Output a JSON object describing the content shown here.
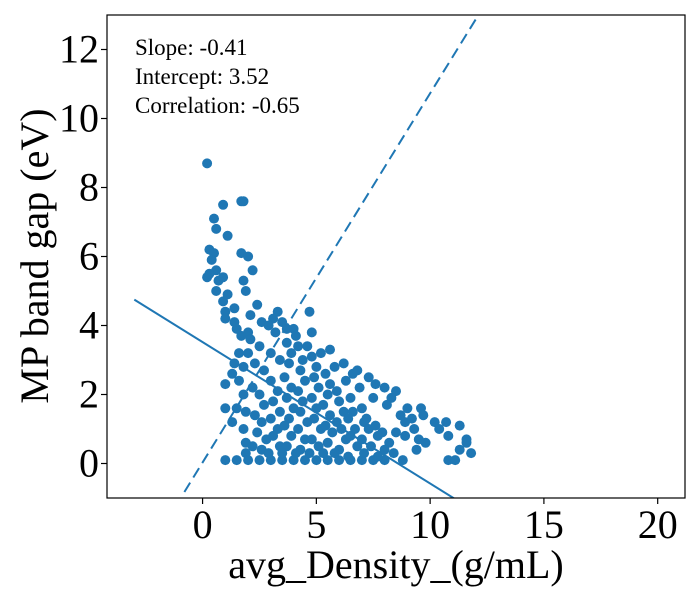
{
  "chart_data": {
    "type": "scatter",
    "title": "",
    "xlabel": "avg_Density_(g/mL)",
    "ylabel": "MP band gap (eV)",
    "xlim": [
      -4.2,
      21.2
    ],
    "ylim": [
      -1.0,
      13.0
    ],
    "xticks": [
      0,
      5,
      10,
      15,
      20
    ],
    "yticks": [
      0,
      2,
      4,
      6,
      8,
      10,
      12
    ],
    "grid": false,
    "color": "#1f77b4",
    "annotations": [
      "Slope: -0.41",
      "Intercept: 3.52",
      "Correlation: -0.65"
    ],
    "fit_line": {
      "style": "solid",
      "slope": -0.41,
      "intercept": 3.52,
      "x_range": [
        -3.0,
        12.0
      ]
    },
    "ideal_line": {
      "style": "dashed",
      "slope": 1.07,
      "intercept": 0.03,
      "x_range": [
        -0.8,
        12.2
      ]
    },
    "series": [
      {
        "points": [
          [
            0.2,
            8.7
          ],
          [
            1.7,
            7.6
          ],
          [
            1.8,
            7.6
          ],
          [
            0.5,
            7.1
          ],
          [
            0.9,
            7.5
          ],
          [
            1.1,
            6.6
          ],
          [
            0.6,
            6.8
          ],
          [
            0.3,
            6.2
          ],
          [
            0.5,
            6.1
          ],
          [
            1.7,
            6.1
          ],
          [
            2.0,
            6.0
          ],
          [
            0.4,
            5.9
          ],
          [
            0.6,
            5.6
          ],
          [
            0.2,
            5.4
          ],
          [
            0.3,
            5.5
          ],
          [
            0.7,
            5.3
          ],
          [
            0.9,
            5.4
          ],
          [
            1.8,
            5.3
          ],
          [
            2.2,
            5.6
          ],
          [
            0.6,
            5.0
          ],
          [
            0.9,
            4.7
          ],
          [
            1.1,
            4.9
          ],
          [
            1.9,
            5.0
          ],
          [
            2.4,
            4.6
          ],
          [
            1.0,
            4.4
          ],
          [
            1.4,
            4.5
          ],
          [
            2.1,
            4.3
          ],
          [
            3.1,
            4.2
          ],
          [
            3.3,
            4.4
          ],
          [
            4.7,
            4.4
          ],
          [
            1.0,
            4.2
          ],
          [
            1.5,
            3.9
          ],
          [
            2.0,
            3.8
          ],
          [
            2.6,
            4.1
          ],
          [
            3.5,
            4.1
          ],
          [
            4.0,
            3.9
          ],
          [
            4.8,
            3.8
          ],
          [
            5.6,
            3.3
          ],
          [
            6.2,
            2.9
          ],
          [
            6.6,
            2.6
          ],
          [
            6.8,
            2.7
          ],
          [
            7.3,
            2.5
          ],
          [
            7.6,
            2.3
          ],
          [
            8.0,
            2.2
          ],
          [
            8.5,
            2.1
          ],
          [
            8.3,
            1.9
          ],
          [
            9.0,
            1.6
          ],
          [
            9.6,
            1.6
          ],
          [
            9.7,
            1.4
          ],
          [
            10.2,
            1.2
          ],
          [
            10.4,
            1.0
          ],
          [
            10.7,
            1.2
          ],
          [
            10.8,
            0.8
          ],
          [
            11.3,
            1.1
          ],
          [
            11.6,
            0.7
          ],
          [
            11.8,
            0.3
          ],
          [
            11.3,
            0.4
          ],
          [
            11.6,
            0.6
          ],
          [
            10.8,
            0.1
          ],
          [
            11.1,
            0.1
          ],
          [
            9.5,
            0.7
          ],
          [
            8.9,
            0.8
          ],
          [
            8.5,
            0.9
          ],
          [
            8.2,
            0.6
          ],
          [
            7.9,
            0.9
          ],
          [
            9.4,
            0.4
          ],
          [
            9.8,
            0.6
          ],
          [
            7.2,
            1.3
          ],
          [
            8.9,
            1.2
          ],
          [
            9.3,
            1.0
          ],
          [
            1.0,
            2.3
          ],
          [
            1.3,
            2.6
          ],
          [
            1.0,
            1.6
          ],
          [
            1.5,
            1.6
          ],
          [
            1.3,
            1.2
          ],
          [
            1.9,
            1.5
          ],
          [
            1.8,
            1.0
          ],
          [
            1.9,
            0.6
          ],
          [
            1.9,
            0.3
          ],
          [
            1.0,
            0.1
          ],
          [
            1.5,
            0.1
          ],
          [
            2.0,
            0.1
          ],
          [
            2.5,
            0.1
          ],
          [
            3.0,
            0.1
          ],
          [
            3.5,
            0.1
          ],
          [
            4.0,
            0.1
          ],
          [
            4.5,
            0.1
          ],
          [
            5.0,
            0.1
          ],
          [
            5.5,
            0.1
          ],
          [
            6.0,
            0.1
          ],
          [
            6.5,
            0.1
          ],
          [
            7.0,
            0.1
          ],
          [
            7.5,
            0.1
          ],
          [
            8.0,
            0.1
          ],
          [
            8.8,
            0.1
          ],
          [
            2.1,
            3.6
          ],
          [
            2.5,
            3.4
          ],
          [
            2.3,
            2.9
          ],
          [
            2.7,
            2.7
          ],
          [
            2.2,
            2.2
          ],
          [
            2.5,
            2.0
          ],
          [
            2.7,
            1.7
          ],
          [
            2.3,
            1.4
          ],
          [
            2.6,
            1.2
          ],
          [
            2.4,
            0.9
          ],
          [
            2.8,
            0.7
          ],
          [
            2.6,
            0.4
          ],
          [
            3.2,
            3.8
          ],
          [
            3.0,
            3.2
          ],
          [
            3.4,
            3.0
          ],
          [
            3.0,
            2.4
          ],
          [
            3.3,
            2.1
          ],
          [
            3.1,
            1.8
          ],
          [
            3.4,
            1.5
          ],
          [
            3.0,
            1.3
          ],
          [
            3.3,
            1.0
          ],
          [
            3.1,
            0.8
          ],
          [
            3.4,
            0.5
          ],
          [
            3.7,
            3.5
          ],
          [
            3.9,
            3.2
          ],
          [
            3.8,
            2.9
          ],
          [
            3.6,
            2.5
          ],
          [
            3.9,
            2.2
          ],
          [
            3.7,
            1.9
          ],
          [
            4.0,
            1.6
          ],
          [
            3.8,
            1.3
          ],
          [
            3.6,
            1.1
          ],
          [
            3.9,
            0.8
          ],
          [
            3.7,
            0.5
          ],
          [
            4.2,
            3.4
          ],
          [
            4.4,
            3.0
          ],
          [
            4.3,
            2.7
          ],
          [
            4.5,
            2.4
          ],
          [
            4.2,
            2.1
          ],
          [
            4.4,
            1.8
          ],
          [
            4.3,
            1.5
          ],
          [
            4.6,
            1.2
          ],
          [
            4.2,
            1.0
          ],
          [
            4.5,
            0.7
          ],
          [
            4.3,
            0.4
          ],
          [
            4.8,
            3.1
          ],
          [
            5.0,
            2.8
          ],
          [
            4.9,
            2.5
          ],
          [
            5.1,
            2.2
          ],
          [
            4.8,
            1.9
          ],
          [
            5.0,
            1.6
          ],
          [
            4.9,
            1.3
          ],
          [
            5.2,
            1.0
          ],
          [
            4.8,
            0.7
          ],
          [
            5.1,
            0.5
          ],
          [
            5.4,
            2.6
          ],
          [
            5.6,
            2.3
          ],
          [
            5.5,
            2.0
          ],
          [
            5.3,
            1.7
          ],
          [
            5.6,
            1.4
          ],
          [
            5.4,
            1.1
          ],
          [
            5.7,
            0.9
          ],
          [
            5.5,
            0.6
          ],
          [
            5.3,
            0.3
          ],
          [
            5.9,
            2.1
          ],
          [
            6.0,
            1.8
          ],
          [
            6.2,
            1.5
          ],
          [
            5.9,
            1.2
          ],
          [
            6.1,
            1.0
          ],
          [
            6.3,
            0.7
          ],
          [
            6.0,
            0.4
          ],
          [
            6.5,
            1.9
          ],
          [
            6.6,
            1.5
          ],
          [
            6.4,
            1.3
          ],
          [
            6.7,
            1.0
          ],
          [
            6.5,
            0.8
          ],
          [
            6.8,
            0.5
          ],
          [
            7.0,
            1.6
          ],
          [
            7.1,
            1.2
          ],
          [
            7.3,
            1.0
          ],
          [
            7.0,
            0.7
          ],
          [
            7.4,
            0.5
          ],
          [
            7.6,
            1.1
          ],
          [
            7.7,
            0.8
          ],
          [
            8.0,
            0.4
          ],
          [
            1.4,
            4.1
          ],
          [
            1.7,
            3.7
          ],
          [
            1.6,
            3.2
          ],
          [
            1.4,
            2.9
          ],
          [
            1.8,
            2.8
          ],
          [
            1.6,
            2.4
          ],
          [
            1.8,
            2.0
          ],
          [
            2.0,
            3.2
          ],
          [
            2.9,
            4.0
          ],
          [
            3.7,
            3.9
          ],
          [
            4.1,
            3.7
          ],
          [
            4.6,
            3.4
          ],
          [
            5.2,
            3.2
          ],
          [
            5.8,
            2.8
          ],
          [
            6.3,
            2.4
          ],
          [
            6.9,
            2.2
          ],
          [
            7.5,
            1.9
          ],
          [
            8.1,
            1.7
          ],
          [
            8.7,
            1.4
          ],
          [
            9.2,
            1.3
          ],
          [
            2.2,
            0.5
          ],
          [
            2.9,
            0.3
          ],
          [
            3.5,
            0.3
          ],
          [
            4.1,
            0.3
          ],
          [
            4.7,
            0.3
          ],
          [
            5.8,
            0.3
          ],
          [
            6.4,
            0.2
          ],
          [
            7.1,
            0.3
          ],
          [
            7.7,
            0.2
          ],
          [
            8.4,
            0.3
          ]
        ]
      }
    ]
  }
}
